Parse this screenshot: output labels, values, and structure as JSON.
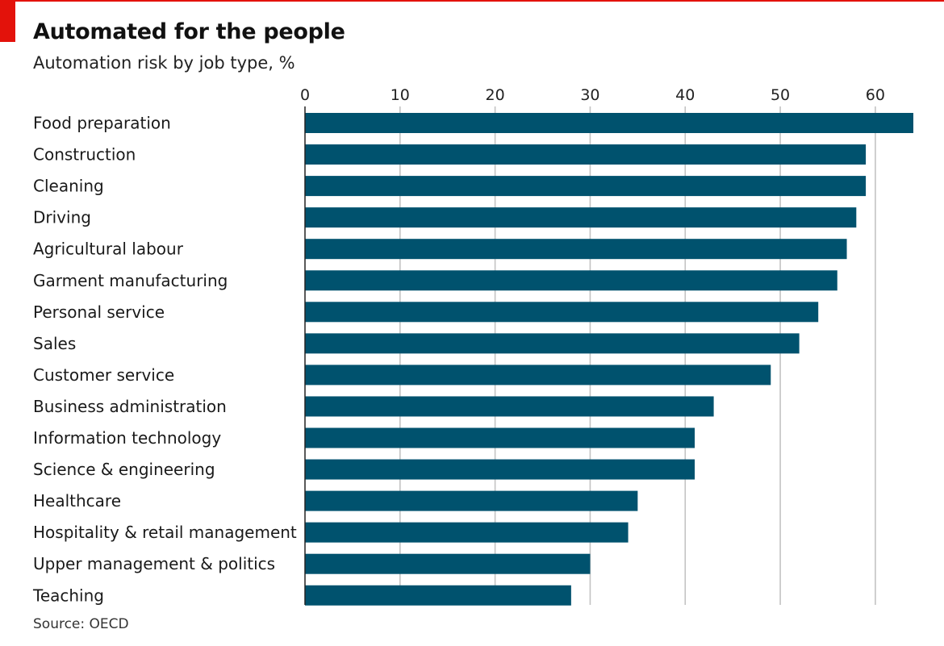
{
  "chart_data": {
    "type": "bar",
    "orientation": "horizontal",
    "title": "Automated for the people",
    "subtitle": "Automation risk by job type, %",
    "source": "Source: OECD",
    "categories": [
      "Food preparation",
      "Construction",
      "Cleaning",
      "Driving",
      "Agricultural labour",
      "Garment manufacturing",
      "Personal service",
      "Sales",
      "Customer service",
      "Business administration",
      "Information technology",
      "Science & engineering",
      "Healthcare",
      "Hospitality & retail management",
      "Upper management & politics",
      "Teaching"
    ],
    "values": [
      64,
      59,
      59,
      58,
      57,
      56,
      54,
      52,
      49,
      43,
      41,
      41,
      35,
      34,
      30,
      28
    ],
    "xlim": [
      0,
      64
    ],
    "xticks": [
      0,
      10,
      20,
      30,
      40,
      50,
      60
    ],
    "xtick_labels": [
      "0",
      "10",
      "20",
      "30",
      "40",
      "50",
      "60"
    ],
    "xaxis_position": "top",
    "grid": true,
    "colors": {
      "bar": "#00526e",
      "grid": "#c3c3c3",
      "accent": "#e3120b"
    }
  }
}
